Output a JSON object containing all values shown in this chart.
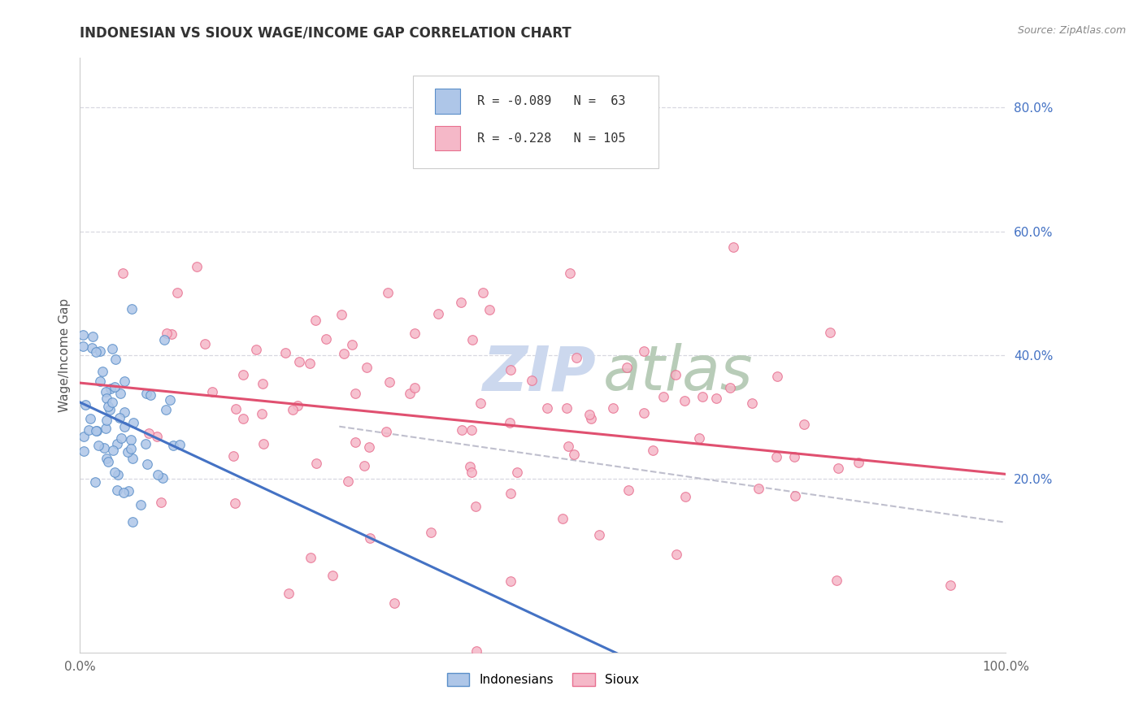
{
  "title": "INDONESIAN VS SIOUX WAGE/INCOME GAP CORRELATION CHART",
  "source": "Source: ZipAtlas.com",
  "ylabel": "Wage/Income Gap",
  "ytick_vals": [
    0.2,
    0.4,
    0.6,
    0.8
  ],
  "ytick_labels": [
    "20.0%",
    "40.0%",
    "60.0%",
    "80.0%"
  ],
  "xlim": [
    0.0,
    1.0
  ],
  "ylim": [
    -0.08,
    0.88
  ],
  "legend_label1": "R = -0.089   N =  63",
  "legend_label2": "R = -0.228   N = 105",
  "legend_label_bottom1": "Indonesians",
  "legend_label_bottom2": "Sioux",
  "color_indonesian_fill": "#aec6e8",
  "color_indonesian_edge": "#5b8fc9",
  "color_sioux_fill": "#f5b8c8",
  "color_sioux_edge": "#e87090",
  "color_line_indonesian": "#4472c4",
  "color_line_sioux": "#e05070",
  "color_dashed": "#b8b8c8",
  "background_color": "#ffffff",
  "grid_color": "#d8d8e0",
  "title_color": "#333333",
  "tick_color": "#4472c4",
  "watermark_zip_color": "#ccd8ee",
  "watermark_atlas_color": "#b8ccb8"
}
